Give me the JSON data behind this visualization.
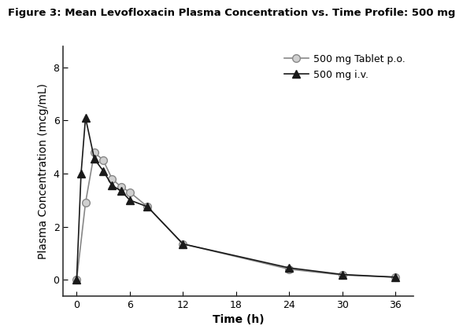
{
  "title": "Figure 3: Mean Levofloxacin Plasma Concentration vs. Time Profile: 500 mg",
  "xlabel": "Time (h)",
  "ylabel": "Plasma Concentration (mcg/mL)",
  "xlim": [
    -1.5,
    38
  ],
  "ylim": [
    -0.6,
    8.8
  ],
  "xticks": [
    0,
    6,
    12,
    18,
    24,
    30,
    36
  ],
  "yticks": [
    0,
    2,
    4,
    6,
    8
  ],
  "tablet_x": [
    0,
    1,
    2,
    3,
    4,
    5,
    6,
    8,
    12,
    24,
    30,
    36
  ],
  "tablet_y": [
    0.0,
    2.9,
    4.8,
    4.5,
    3.8,
    3.5,
    3.3,
    2.75,
    1.35,
    0.4,
    0.18,
    0.1
  ],
  "iv_x": [
    0,
    0.5,
    1,
    2,
    3,
    4,
    5,
    6,
    8,
    12,
    24,
    30,
    36
  ],
  "iv_y": [
    0.0,
    4.0,
    6.1,
    4.55,
    4.1,
    3.55,
    3.35,
    3.0,
    2.75,
    1.35,
    0.45,
    0.2,
    0.1
  ],
  "tablet_color": "#888888",
  "iv_color": "#1a1a1a",
  "background_color": "#ffffff",
  "legend_tablet": "500 mg Tablet p.o.",
  "legend_iv": "500 mg i.v.",
  "title_fontsize": 9.5,
  "axis_label_fontsize": 10,
  "tick_fontsize": 9,
  "legend_fontsize": 9
}
